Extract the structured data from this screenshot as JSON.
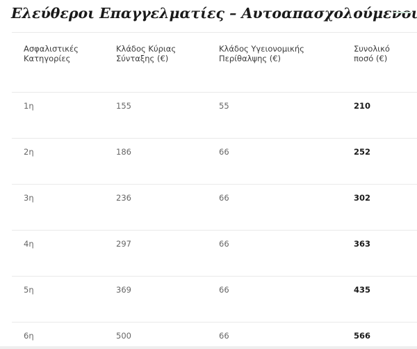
{
  "title": "Ελεύθεροι Επαγγελματίες – Αυτοαπασχολούμενοι",
  "table": {
    "headers": [
      "Ασφαλιστικές\nΚατηγορίες",
      "Κλάδος Κύριας\nΣύνταξης (€)",
      "Κλάδος  Υγειονομικής\nΠερίθαλψης (€)",
      "Συνολικό\nποσό (€)"
    ],
    "rows": [
      [
        "1η",
        "155",
        "55",
        "210"
      ],
      [
        "2η",
        "186",
        "66",
        "252"
      ],
      [
        "3η",
        "236",
        "66",
        "302"
      ],
      [
        "4η",
        "297",
        "66",
        "363"
      ],
      [
        "5η",
        "369",
        "66",
        "435"
      ],
      [
        "6η",
        "500",
        "66",
        "566"
      ]
    ]
  }
}
